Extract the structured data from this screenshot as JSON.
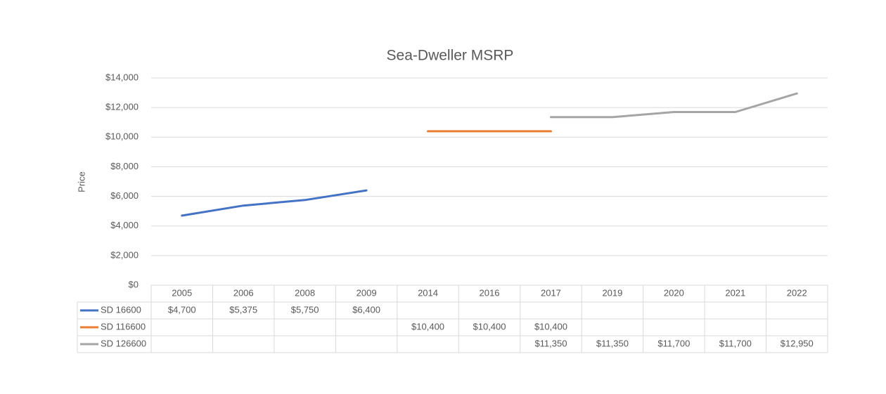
{
  "chart_data": {
    "type": "line",
    "title": "Sea-Dweller MSRP",
    "y_label": "Price",
    "categories": [
      "2005",
      "2006",
      "2008",
      "2009",
      "2014",
      "2016",
      "2017",
      "2019",
      "2020",
      "2021",
      "2022"
    ],
    "series": [
      {
        "name": "SD 16600",
        "color": "#4472c4",
        "values": [
          4700,
          5375,
          5750,
          6400,
          null,
          null,
          null,
          null,
          null,
          null,
          null
        ],
        "value_labels": [
          "$4,700",
          "$5,375",
          "$5,750",
          "$6,400",
          null,
          null,
          null,
          null,
          null,
          null,
          null
        ]
      },
      {
        "name": "SD 116600",
        "color": "#ed7d31",
        "values": [
          null,
          null,
          null,
          null,
          10400,
          10400,
          10400,
          null,
          null,
          null,
          null
        ],
        "value_labels": [
          null,
          null,
          null,
          null,
          "$10,400",
          "$10,400",
          "$10,400",
          null,
          null,
          null,
          null
        ]
      },
      {
        "name": "SD 126600",
        "color": "#a5a5a5",
        "values": [
          null,
          null,
          null,
          null,
          null,
          null,
          11350,
          11350,
          11700,
          11700,
          12950
        ],
        "value_labels": [
          null,
          null,
          null,
          null,
          null,
          null,
          "$11,350",
          "$11,350",
          "$11,700",
          "$11,700",
          "$12,950"
        ]
      }
    ],
    "ylim": [
      0,
      14000
    ],
    "yticks": [
      {
        "value": 0,
        "label": "$0"
      },
      {
        "value": 2000,
        "label": "$2,000"
      },
      {
        "value": 4000,
        "label": "$4,000"
      },
      {
        "value": 6000,
        "label": "$6,000"
      },
      {
        "value": 8000,
        "label": "$8,000"
      },
      {
        "value": 10000,
        "label": "$10,000"
      },
      {
        "value": 12000,
        "label": "$12,000"
      },
      {
        "value": 14000,
        "label": "$14,000"
      }
    ],
    "grid": true
  }
}
